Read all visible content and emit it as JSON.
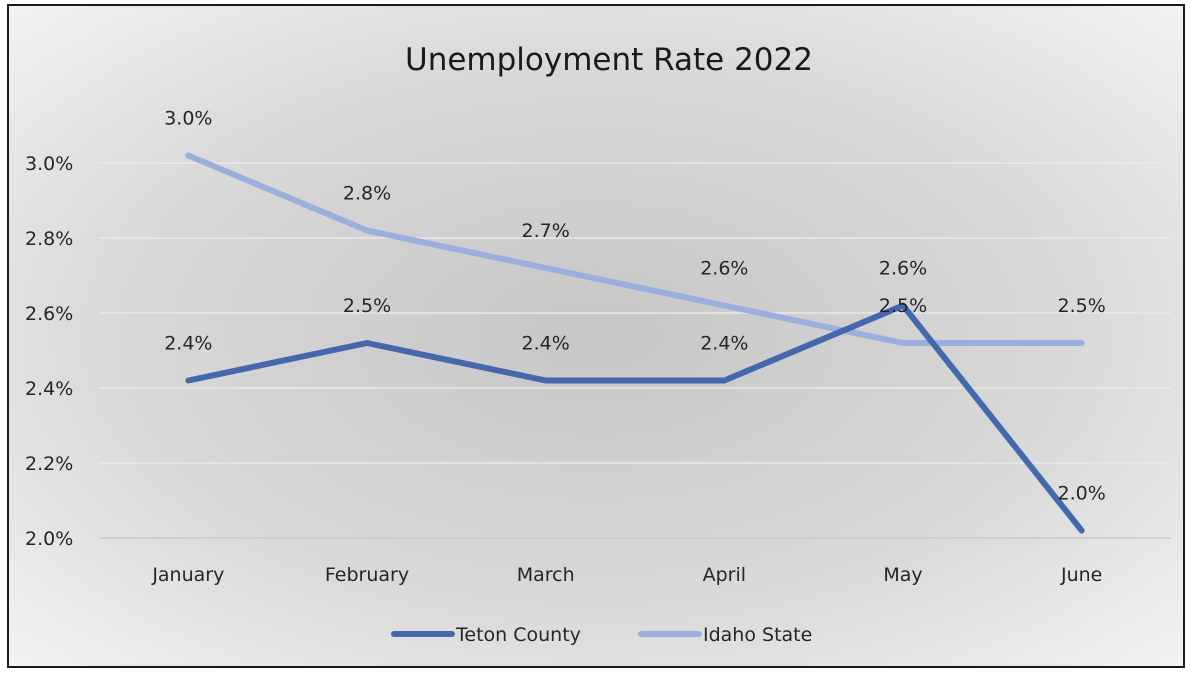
{
  "chart_data": {
    "type": "line",
    "title": "Unemployment Rate 2022",
    "xlabel": "",
    "ylabel": "",
    "categories": [
      "January",
      "February",
      "March",
      "April",
      "May",
      "June"
    ],
    "y_ticks": [
      "2.0%",
      "2.2%",
      "2.4%",
      "2.6%",
      "2.8%",
      "3.0%"
    ],
    "ylim": [
      2.0,
      3.0
    ],
    "grid": true,
    "legend_position": "bottom",
    "series": [
      {
        "name": "Teton County",
        "color": "#4568ad",
        "values": [
          2.42,
          2.52,
          2.42,
          2.42,
          2.62,
          2.02
        ],
        "labels": [
          "2.4%",
          "2.5%",
          "2.4%",
          "2.4%",
          "2.6%",
          "2.0%"
        ]
      },
      {
        "name": "Idaho State",
        "color": "#9aafdd",
        "values": [
          3.02,
          2.82,
          2.72,
          2.62,
          2.52,
          2.52
        ],
        "labels": [
          "3.0%",
          "2.8%",
          "2.7%",
          "2.6%",
          "2.5%",
          "2.5%"
        ]
      }
    ]
  }
}
